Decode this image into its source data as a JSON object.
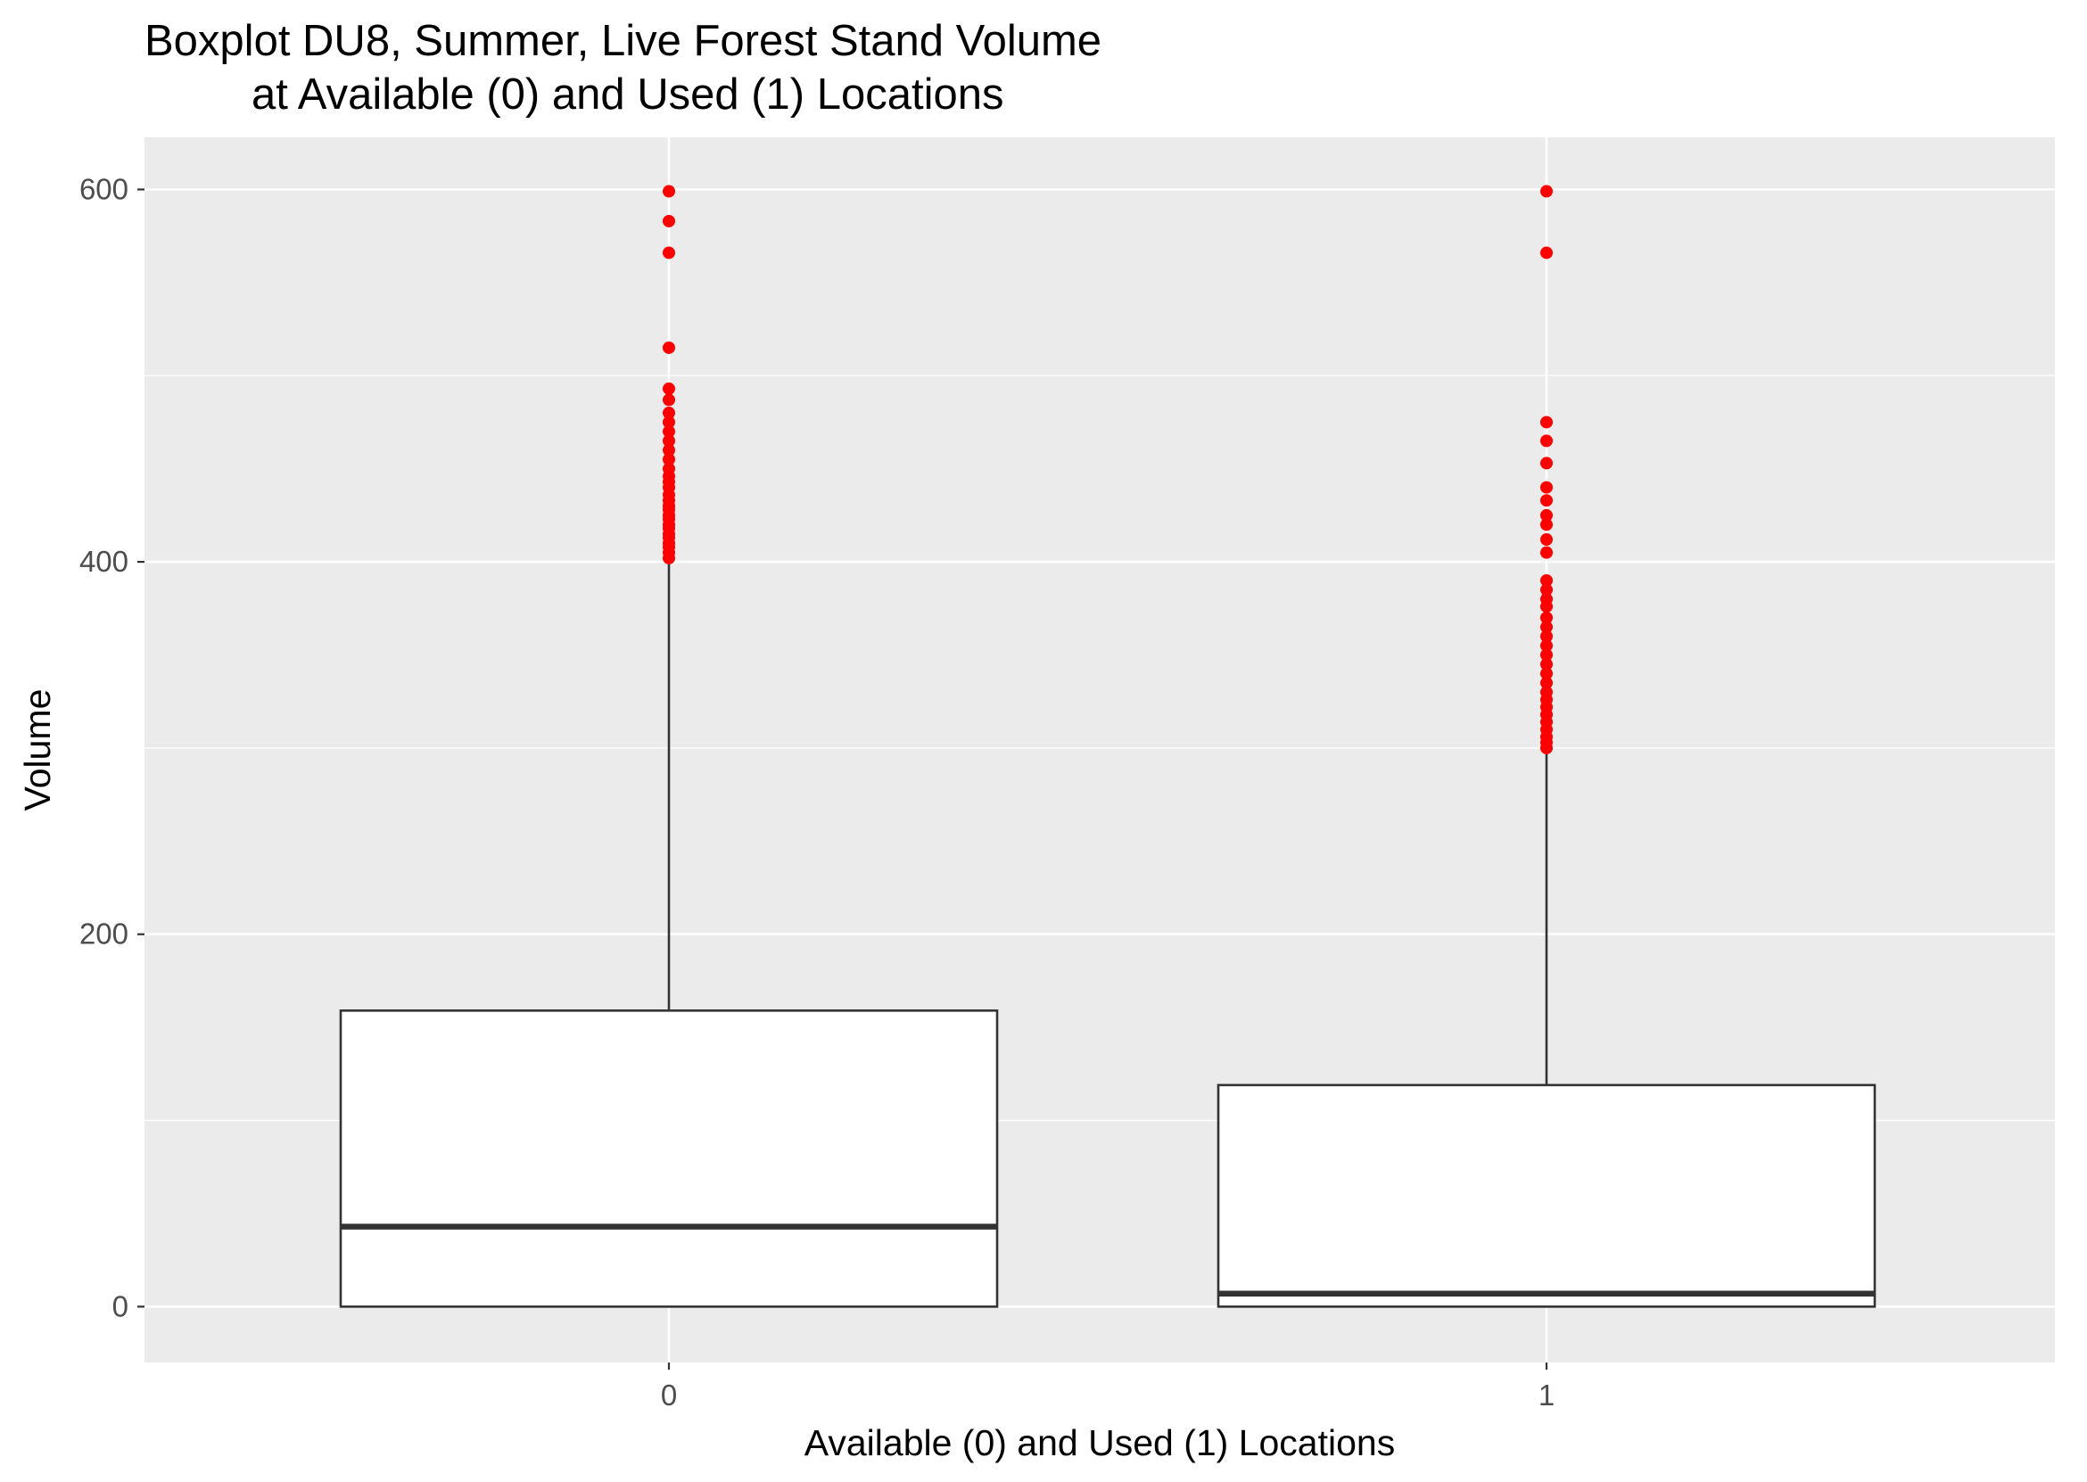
{
  "chart_data": {
    "type": "boxplot",
    "title_lines": [
      "Boxplot DU8, Summer, Live Forest Stand Volume",
      "at Available (0) and Used (1) Locations"
    ],
    "xlabel": "Available (0) and Used (1) Locations",
    "ylabel": "Volume",
    "categories": [
      "0",
      "1"
    ],
    "y_ticks": [
      0,
      200,
      400,
      600
    ],
    "y_tick_labels": [
      "0",
      "200",
      "400",
      "600"
    ],
    "ylim": [
      -30,
      628
    ],
    "grid": true,
    "outlier_color": "#ff0000",
    "panel_color": "#ebebeb",
    "box_fill": "#ffffff",
    "line_color": "#333333",
    "boxes": [
      {
        "category": "0",
        "min": 0,
        "q1": 0,
        "median": 43,
        "q3": 159,
        "max": 400,
        "outliers": [
          402,
          405,
          408,
          410,
          413,
          415,
          418,
          420,
          423,
          425,
          428,
          430,
          433,
          436,
          440,
          443,
          446,
          450,
          455,
          460,
          465,
          470,
          475,
          480,
          487,
          493,
          515,
          566,
          583,
          599
        ]
      },
      {
        "category": "1",
        "min": 0,
        "q1": 0,
        "median": 7,
        "q3": 119,
        "max": 298,
        "outliers": [
          300,
          303,
          306,
          310,
          314,
          318,
          322,
          326,
          330,
          335,
          340,
          345,
          350,
          355,
          360,
          365,
          370,
          376,
          380,
          385,
          390,
          405,
          412,
          420,
          425,
          433,
          440,
          453,
          465,
          475,
          566,
          599
        ]
      }
    ]
  }
}
